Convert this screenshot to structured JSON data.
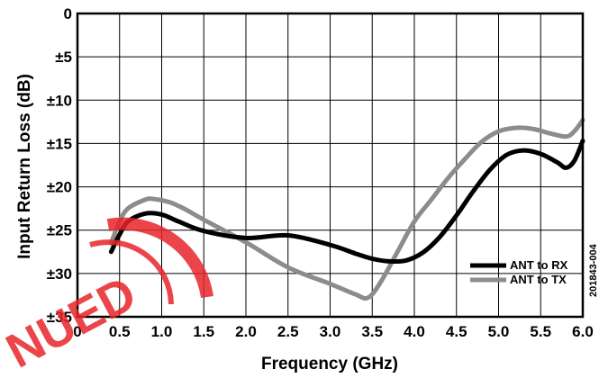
{
  "chart_data": {
    "type": "line",
    "title": "",
    "xlabel": "Frequency (GHz)",
    "ylabel": "Input Return Loss (dB)",
    "xlim": [
      0,
      6.0
    ],
    "ylim": [
      0,
      -35
    ],
    "x_ticks": [
      "0",
      "0.5",
      "1.0",
      "1.5",
      "2.0",
      "2.5",
      "3.0",
      "3.5",
      "4.0",
      "4.5",
      "5.0",
      "5.5",
      "6.0"
    ],
    "y_ticks": [
      "0",
      "±5",
      "±10",
      "±15",
      "±20",
      "±25",
      "±30",
      "±35"
    ],
    "grid": true,
    "legend_position": "bottom-right",
    "series": [
      {
        "name": "ANT to RX",
        "color": "#000000",
        "x": [
          0.4,
          0.5,
          0.6,
          0.8,
          1.0,
          1.2,
          1.5,
          2.0,
          2.5,
          3.0,
          3.3,
          3.5,
          3.7,
          3.9,
          4.1,
          4.3,
          4.5,
          4.7,
          4.9,
          5.1,
          5.3,
          5.5,
          5.7,
          5.8,
          5.9,
          6.0
        ],
        "y": [
          -27.5,
          -25.5,
          -24.0,
          -23.1,
          -23.2,
          -24.0,
          -25.1,
          -25.9,
          -25.6,
          -26.7,
          -27.7,
          -28.3,
          -28.6,
          -28.5,
          -27.6,
          -25.8,
          -23.3,
          -20.5,
          -18.0,
          -16.3,
          -15.8,
          -16.2,
          -17.2,
          -17.8,
          -17.0,
          -14.7
        ]
      },
      {
        "name": "ANT to TX",
        "color": "#8c8c8c",
        "x": [
          0.4,
          0.5,
          0.6,
          0.8,
          0.9,
          1.1,
          1.3,
          1.5,
          2.0,
          2.5,
          3.0,
          3.3,
          3.45,
          3.6,
          3.8,
          4.0,
          4.2,
          4.4,
          4.6,
          4.8,
          5.0,
          5.2,
          5.4,
          5.6,
          5.8,
          5.9,
          6.0
        ],
        "y": [
          -26.5,
          -24.0,
          -22.5,
          -21.5,
          -21.4,
          -21.8,
          -22.7,
          -23.8,
          -26.4,
          -29.3,
          -31.2,
          -32.4,
          -32.8,
          -31.0,
          -27.5,
          -24.0,
          -21.5,
          -19.0,
          -16.8,
          -14.8,
          -13.6,
          -13.2,
          -13.3,
          -13.8,
          -14.2,
          -13.6,
          -12.3
        ]
      }
    ]
  },
  "figure_id": "201843-004",
  "stamp_text": "NUED",
  "colors": {
    "stamp": "#e8252b",
    "grid": "#000000"
  }
}
